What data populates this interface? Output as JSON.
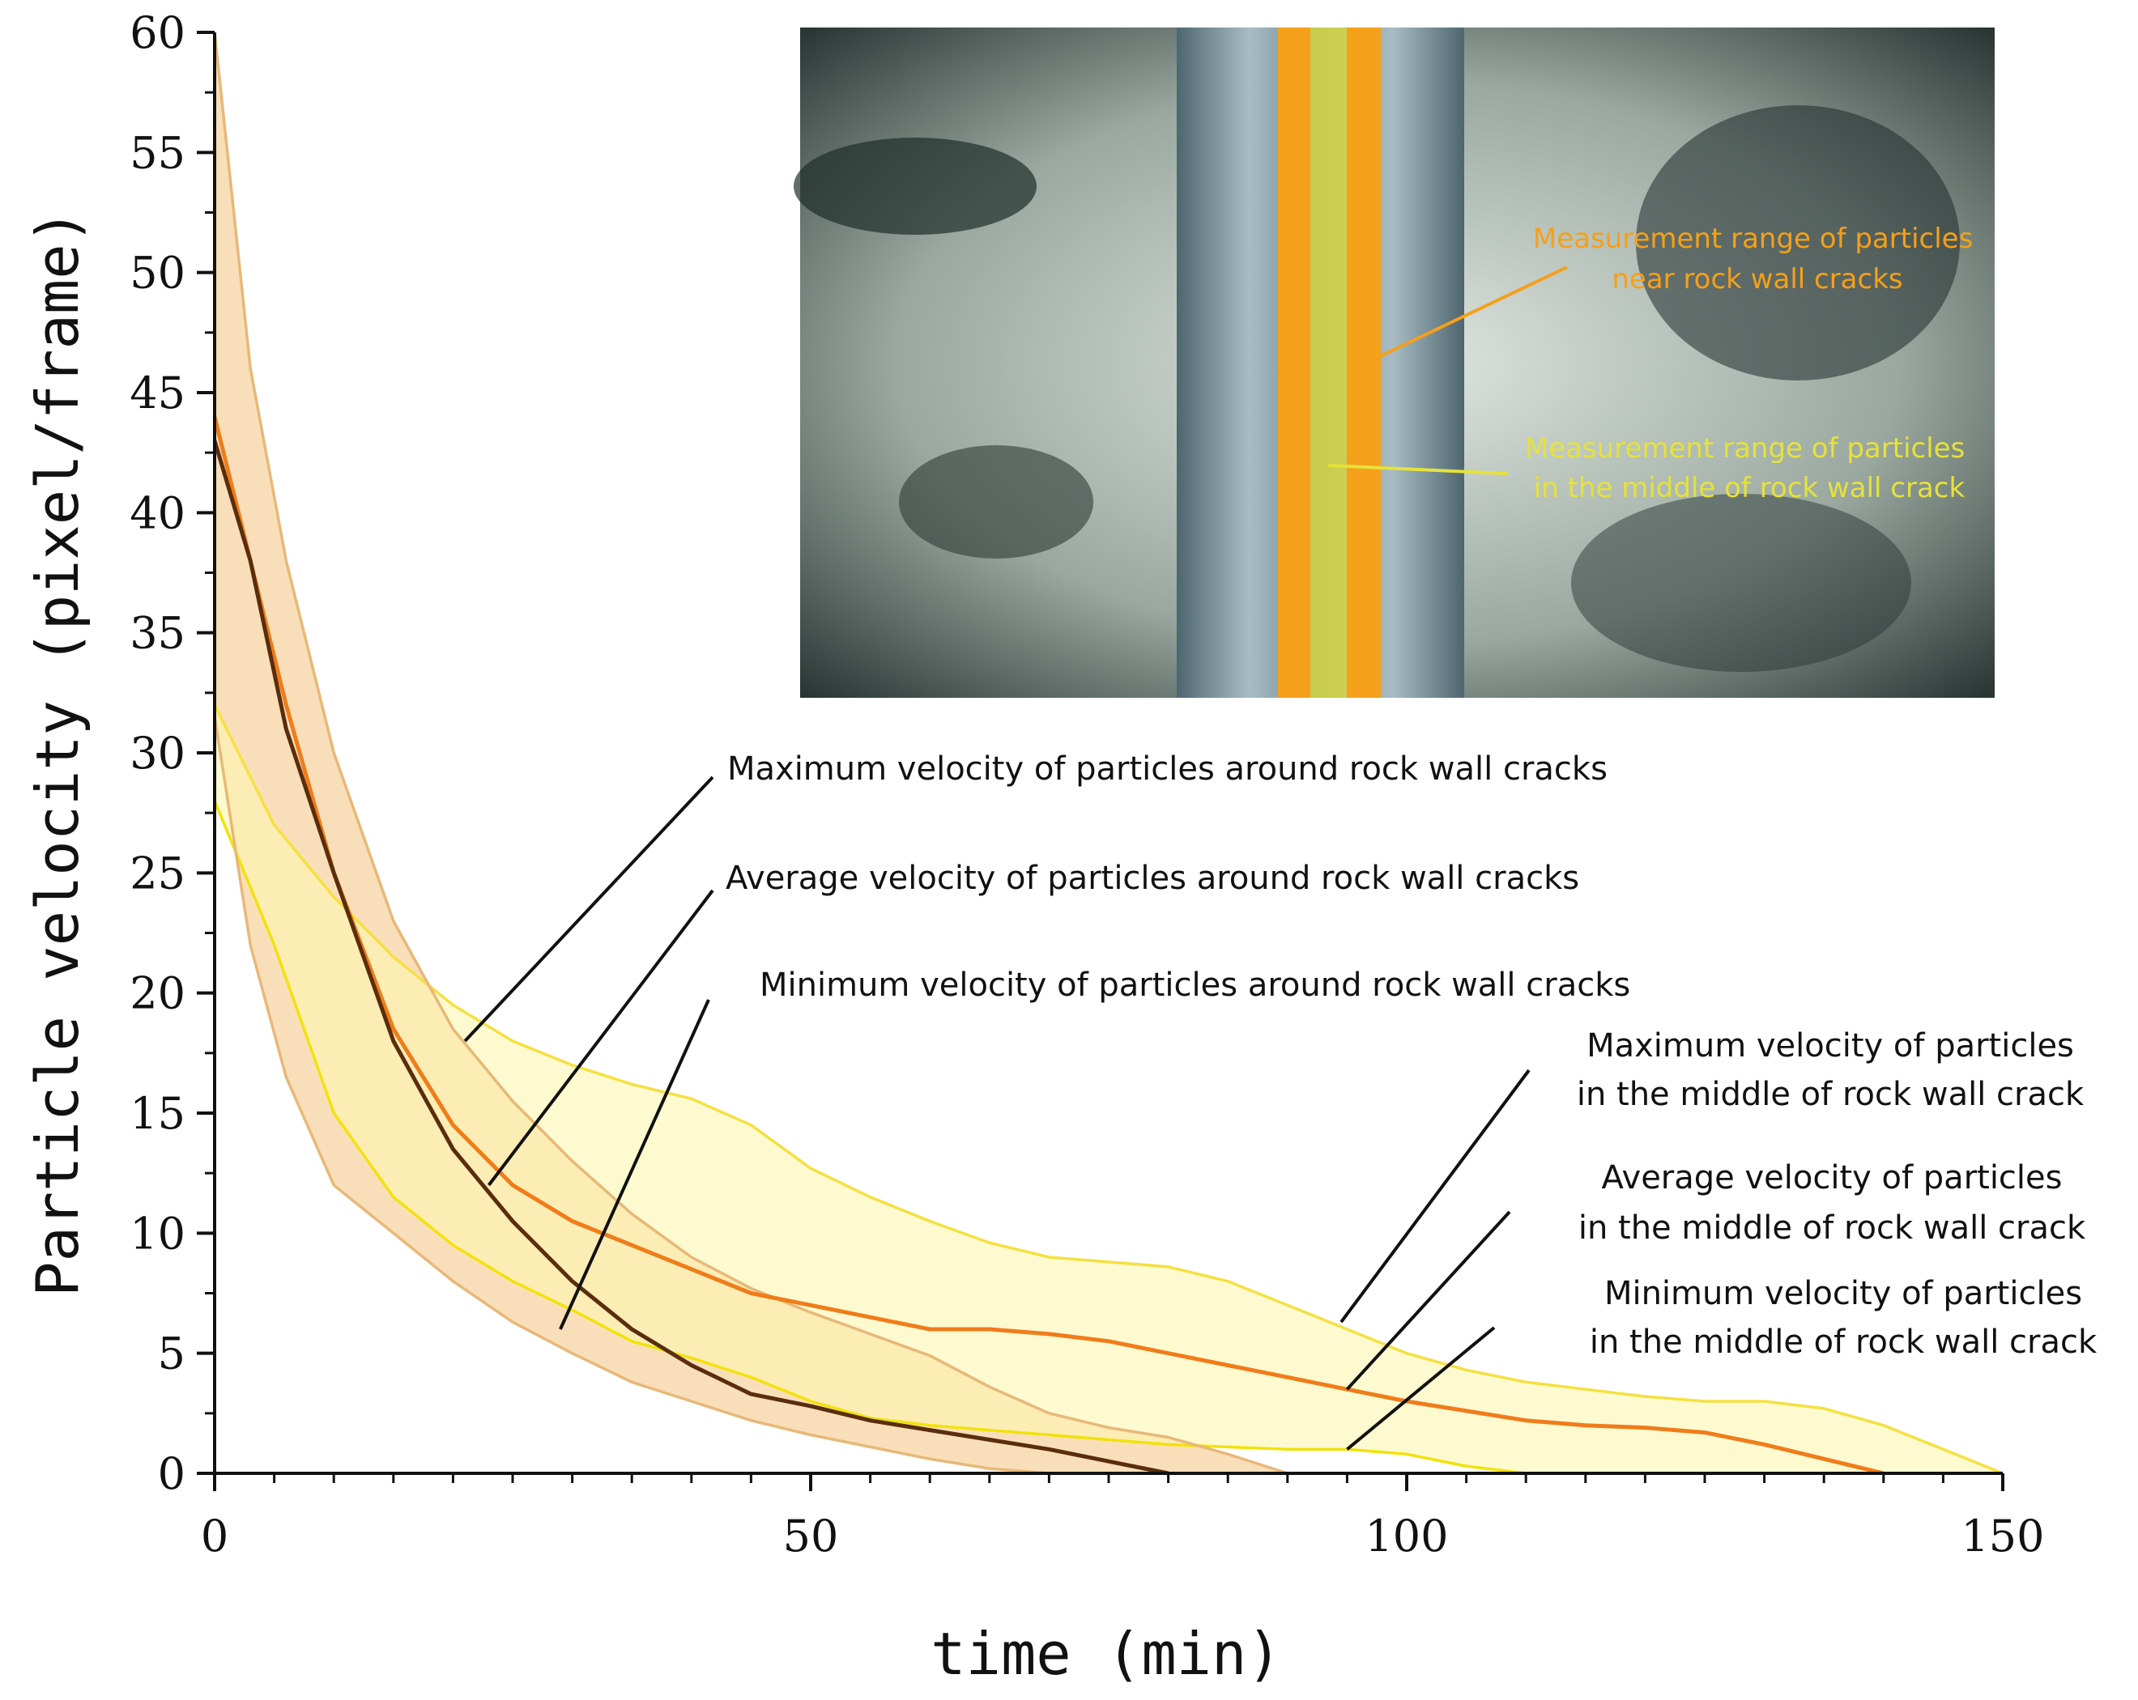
{
  "chart_data": {
    "type": "area",
    "xlabel": "time (min)",
    "ylabel": "Particle velocity (pixel/frame)",
    "xlim": [
      0,
      150
    ],
    "ylim": [
      0,
      60
    ],
    "x_ticks": [
      "0",
      "50",
      "100",
      "150"
    ],
    "y_ticks": [
      "0",
      "5",
      "10",
      "15",
      "20",
      "25",
      "30",
      "35",
      "40",
      "45",
      "50",
      "55",
      "60"
    ],
    "grid": false,
    "bands": [
      {
        "group": "near rock wall cracks",
        "upper": [
          [
            0,
            60
          ],
          [
            3,
            46
          ],
          [
            6,
            38
          ],
          [
            10,
            30
          ],
          [
            15,
            23
          ],
          [
            20,
            18.5
          ],
          [
            25,
            15.5
          ],
          [
            30,
            13
          ],
          [
            35,
            10.8
          ],
          [
            40,
            9
          ],
          [
            45,
            7.7
          ],
          [
            50,
            6.7
          ],
          [
            55,
            5.8
          ],
          [
            60,
            4.9
          ],
          [
            65,
            3.6
          ],
          [
            70,
            2.5
          ],
          [
            75,
            1.9
          ],
          [
            80,
            1.5
          ],
          [
            85,
            0.8
          ],
          [
            90,
            0
          ]
        ],
        "lower": [
          [
            0,
            31.5
          ],
          [
            3,
            22
          ],
          [
            6,
            16.5
          ],
          [
            10,
            12
          ],
          [
            15,
            10
          ],
          [
            20,
            8
          ],
          [
            25,
            6.3
          ],
          [
            30,
            5
          ],
          [
            35,
            3.8
          ],
          [
            40,
            3
          ],
          [
            45,
            2.2
          ],
          [
            50,
            1.6
          ],
          [
            55,
            1.1
          ],
          [
            60,
            0.6
          ],
          [
            65,
            0.2
          ],
          [
            70,
            0
          ]
        ],
        "fill_color": "#f5c98a"
      },
      {
        "group": "middle of rock wall crack",
        "upper": [
          [
            0,
            32
          ],
          [
            5,
            27
          ],
          [
            10,
            24
          ],
          [
            15,
            21.5
          ],
          [
            20,
            19.5
          ],
          [
            25,
            18
          ],
          [
            30,
            17
          ],
          [
            35,
            16.2
          ],
          [
            40,
            15.6
          ],
          [
            45,
            14.5
          ],
          [
            50,
            12.7
          ],
          [
            55,
            11.5
          ],
          [
            60,
            10.5
          ],
          [
            65,
            9.6
          ],
          [
            70,
            9
          ],
          [
            75,
            8.8
          ],
          [
            80,
            8.6
          ],
          [
            85,
            8
          ],
          [
            90,
            7
          ],
          [
            95,
            6
          ],
          [
            100,
            5
          ],
          [
            105,
            4.3
          ],
          [
            110,
            3.8
          ],
          [
            115,
            3.5
          ],
          [
            120,
            3.2
          ],
          [
            125,
            3
          ],
          [
            130,
            3
          ],
          [
            135,
            2.7
          ],
          [
            140,
            2
          ],
          [
            145,
            1
          ],
          [
            150,
            0
          ]
        ],
        "lower": [
          [
            0,
            28
          ],
          [
            5,
            22
          ],
          [
            10,
            15
          ],
          [
            15,
            11.5
          ],
          [
            20,
            9.5
          ],
          [
            25,
            8
          ],
          [
            30,
            6.8
          ],
          [
            35,
            5.5
          ],
          [
            40,
            4.8
          ],
          [
            45,
            4
          ],
          [
            50,
            3
          ],
          [
            55,
            2.3
          ],
          [
            60,
            2
          ],
          [
            65,
            1.8
          ],
          [
            70,
            1.6
          ],
          [
            75,
            1.4
          ],
          [
            80,
            1.2
          ],
          [
            85,
            1.1
          ],
          [
            90,
            1
          ],
          [
            95,
            1
          ],
          [
            100,
            0.8
          ],
          [
            105,
            0.3
          ],
          [
            110,
            0
          ]
        ],
        "fill_color": "#fdf7b0"
      }
    ],
    "series": [
      {
        "name": "Maximum velocity of particles in the middle of rock wall crack",
        "color": "#f5e040",
        "points": [
          [
            0,
            32
          ],
          [
            5,
            27
          ],
          [
            10,
            24
          ],
          [
            15,
            21.5
          ],
          [
            20,
            19.5
          ],
          [
            25,
            18
          ],
          [
            30,
            17
          ],
          [
            35,
            16.2
          ],
          [
            40,
            15.6
          ],
          [
            45,
            14.5
          ],
          [
            50,
            12.7
          ],
          [
            55,
            11.5
          ],
          [
            60,
            10.5
          ],
          [
            65,
            9.6
          ],
          [
            70,
            9
          ],
          [
            75,
            8.8
          ],
          [
            80,
            8.6
          ],
          [
            85,
            8
          ],
          [
            90,
            7
          ],
          [
            95,
            6
          ],
          [
            100,
            5
          ],
          [
            105,
            4.3
          ],
          [
            110,
            3.8
          ],
          [
            115,
            3.5
          ],
          [
            120,
            3.2
          ],
          [
            125,
            3
          ],
          [
            130,
            3
          ],
          [
            135,
            2.7
          ],
          [
            140,
            2
          ],
          [
            145,
            1
          ],
          [
            150,
            0
          ]
        ]
      },
      {
        "name": "Minimum velocity of particles in the middle of rock wall crack",
        "color": "#f2e20a",
        "points": [
          [
            0,
            28
          ],
          [
            5,
            22
          ],
          [
            10,
            15
          ],
          [
            15,
            11.5
          ],
          [
            20,
            9.5
          ],
          [
            25,
            8
          ],
          [
            30,
            6.8
          ],
          [
            35,
            5.5
          ],
          [
            40,
            4.8
          ],
          [
            45,
            4
          ],
          [
            50,
            3
          ],
          [
            55,
            2.3
          ],
          [
            60,
            2
          ],
          [
            65,
            1.8
          ],
          [
            70,
            1.6
          ],
          [
            75,
            1.4
          ],
          [
            80,
            1.2
          ],
          [
            85,
            1.1
          ],
          [
            90,
            1
          ],
          [
            95,
            1
          ],
          [
            100,
            0.8
          ],
          [
            105,
            0.3
          ],
          [
            110,
            0
          ]
        ]
      },
      {
        "name": "Maximum velocity of particles around rock wall cracks",
        "color": "#e8b878",
        "points": [
          [
            0,
            60
          ],
          [
            3,
            46
          ],
          [
            6,
            38
          ],
          [
            10,
            30
          ],
          [
            15,
            23
          ],
          [
            20,
            18.5
          ],
          [
            25,
            15.5
          ],
          [
            30,
            13
          ],
          [
            35,
            10.8
          ],
          [
            40,
            9
          ],
          [
            45,
            7.7
          ],
          [
            50,
            6.7
          ],
          [
            55,
            5.8
          ],
          [
            60,
            4.9
          ],
          [
            65,
            3.6
          ],
          [
            70,
            2.5
          ],
          [
            75,
            1.9
          ],
          [
            80,
            1.5
          ],
          [
            85,
            0.8
          ],
          [
            90,
            0
          ]
        ]
      },
      {
        "name": "Minimum velocity of particles around rock wall cracks",
        "color": "#e8b878",
        "points": [
          [
            0,
            31.5
          ],
          [
            3,
            22
          ],
          [
            6,
            16.5
          ],
          [
            10,
            12
          ],
          [
            15,
            10
          ],
          [
            20,
            8
          ],
          [
            25,
            6.3
          ],
          [
            30,
            5
          ],
          [
            35,
            3.8
          ],
          [
            40,
            3
          ],
          [
            45,
            2.2
          ],
          [
            50,
            1.6
          ],
          [
            55,
            1.1
          ],
          [
            60,
            0.6
          ],
          [
            65,
            0.2
          ],
          [
            70,
            0
          ]
        ]
      },
      {
        "name": "Average velocity of particles in the middle of rock wall crack",
        "color": "#f07c1a",
        "points": [
          [
            0,
            44
          ],
          [
            3,
            38
          ],
          [
            6,
            32
          ],
          [
            10,
            25
          ],
          [
            15,
            18.5
          ],
          [
            20,
            14.5
          ],
          [
            25,
            12
          ],
          [
            30,
            10.5
          ],
          [
            35,
            9.5
          ],
          [
            40,
            8.5
          ],
          [
            45,
            7.5
          ],
          [
            50,
            7
          ],
          [
            55,
            6.5
          ],
          [
            60,
            6
          ],
          [
            65,
            6
          ],
          [
            70,
            5.8
          ],
          [
            75,
            5.5
          ],
          [
            80,
            5
          ],
          [
            85,
            4.5
          ],
          [
            90,
            4
          ],
          [
            95,
            3.5
          ],
          [
            100,
            3
          ],
          [
            105,
            2.6
          ],
          [
            110,
            2.2
          ],
          [
            115,
            2
          ],
          [
            120,
            1.9
          ],
          [
            125,
            1.7
          ],
          [
            130,
            1.2
          ],
          [
            135,
            0.6
          ],
          [
            140,
            0
          ]
        ]
      },
      {
        "name": "Average velocity of particles around rock wall cracks",
        "color": "#5a2d0c",
        "points": [
          [
            0,
            43
          ],
          [
            3,
            38
          ],
          [
            6,
            31
          ],
          [
            10,
            25
          ],
          [
            15,
            18
          ],
          [
            20,
            13.5
          ],
          [
            25,
            10.5
          ],
          [
            30,
            8
          ],
          [
            35,
            6
          ],
          [
            40,
            4.5
          ],
          [
            45,
            3.3
          ],
          [
            50,
            2.8
          ],
          [
            55,
            2.2
          ],
          [
            60,
            1.8
          ],
          [
            65,
            1.4
          ],
          [
            70,
            1
          ],
          [
            75,
            0.5
          ],
          [
            80,
            0
          ]
        ]
      }
    ],
    "annotations": [
      {
        "text": "Maximum velocity of particles around rock wall cracks",
        "lines": [
          "Maximum velocity of particles around rock wall cracks"
        ],
        "target": [
          21,
          18
        ],
        "text_align": "start"
      },
      {
        "text": "Average velocity of particles around rock wall cracks",
        "lines": [
          "Average velocity of particles around rock wall cracks"
        ],
        "target": [
          23,
          12
        ],
        "text_align": "start"
      },
      {
        "text": "Minimum velocity of particles around rock wall cracks",
        "lines": [
          "Minimum velocity of particles around rock wall cracks"
        ],
        "target": [
          29,
          6
        ],
        "text_align": "start"
      },
      {
        "text": "Maximum velocity of particles in the middle of rock wall crack",
        "lines": [
          "Maximum velocity of particles",
          "in the middle of rock wall crack"
        ],
        "target": [
          94.5,
          6.3
        ],
        "text_align": "middle"
      },
      {
        "text": "Average velocity of particles in the middle of rock wall crack",
        "lines": [
          "Average velocity of particles",
          "in the middle of rock wall crack"
        ],
        "target": [
          95,
          3.5
        ],
        "text_align": "middle"
      },
      {
        "text": "Minimum velocity of particles in the middle of rock wall crack",
        "lines": [
          "Minimum velocity of particles",
          "in the middle of rock wall crack"
        ],
        "target": [
          95,
          1
        ],
        "text_align": "middle"
      }
    ]
  },
  "inset": {
    "label_near": [
      "Measurement range of particles",
      "near rock wall cracks"
    ],
    "label_middle": [
      "Measurement range of particles",
      "in the middle of rock wall crack"
    ],
    "color_near": "#f5a01a",
    "color_middle": "#e6e23a"
  }
}
